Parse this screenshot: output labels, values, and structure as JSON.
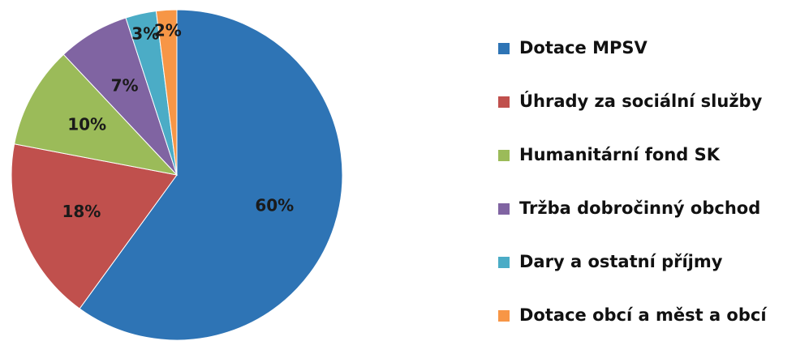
{
  "chart_data": {
    "type": "pie",
    "categories": [
      "Dotace MPSV",
      "Úhrady za sociální služby",
      "Humanitární fond SK",
      "Tržba dobročinný obchod",
      "Dary a ostatní příjmy",
      "Dotace obcí a měst a obcí"
    ],
    "values": [
      60,
      18,
      10,
      7,
      3,
      2
    ],
    "value_labels": [
      "60%",
      "18%",
      "10%",
      "7%",
      "3%",
      "2%"
    ],
    "colors": [
      "#2e74b5",
      "#c0504d",
      "#9bbb59",
      "#8064a2",
      "#4bacc6",
      "#f79646"
    ],
    "legend": "right"
  }
}
